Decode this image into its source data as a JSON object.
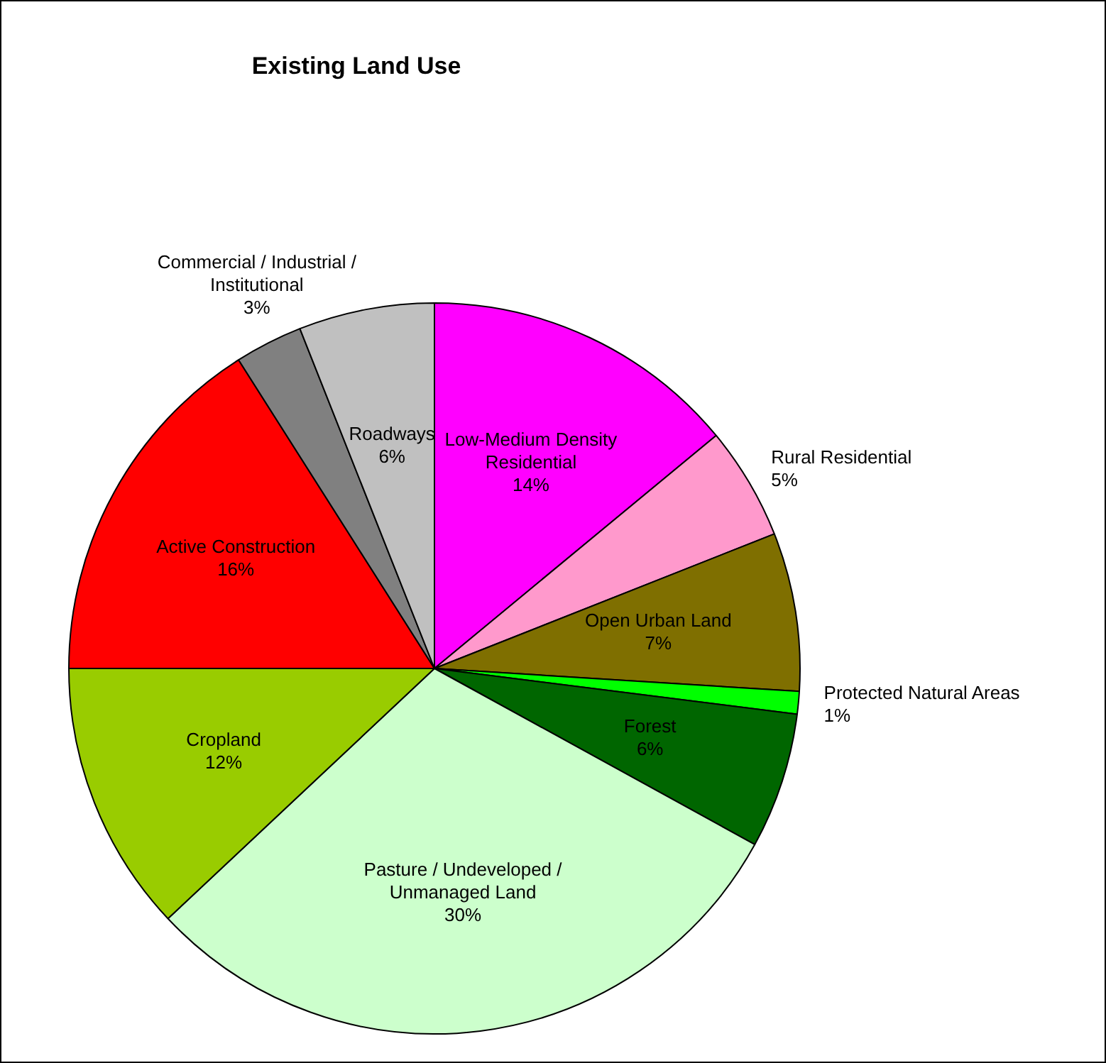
{
  "chart_data": {
    "type": "pie",
    "title": "Existing Land Use",
    "categories": [
      "Low-Medium Density Residential",
      "Rural Residential",
      "Open Urban Land",
      "Protected Natural Areas",
      "Forest",
      "Pasture / Undeveloped / Unmanaged Land",
      "Cropland",
      "Active Construction",
      "Commercial / Industrial / Institutional",
      "Roadways"
    ],
    "values": [
      14,
      5,
      7,
      1,
      6,
      30,
      12,
      16,
      3,
      6
    ],
    "value_labels": [
      "14%",
      "5%",
      "7%",
      "1%",
      "6%",
      "30%",
      "12%",
      "16%",
      "3%",
      "6%"
    ],
    "colors": [
      "#ff00ff",
      "#ff99cc",
      "#7f6f00",
      "#00ff00",
      "#006600",
      "#ccffcc",
      "#99cc00",
      "#ff0000",
      "#808080",
      "#c0c0c0"
    ]
  }
}
